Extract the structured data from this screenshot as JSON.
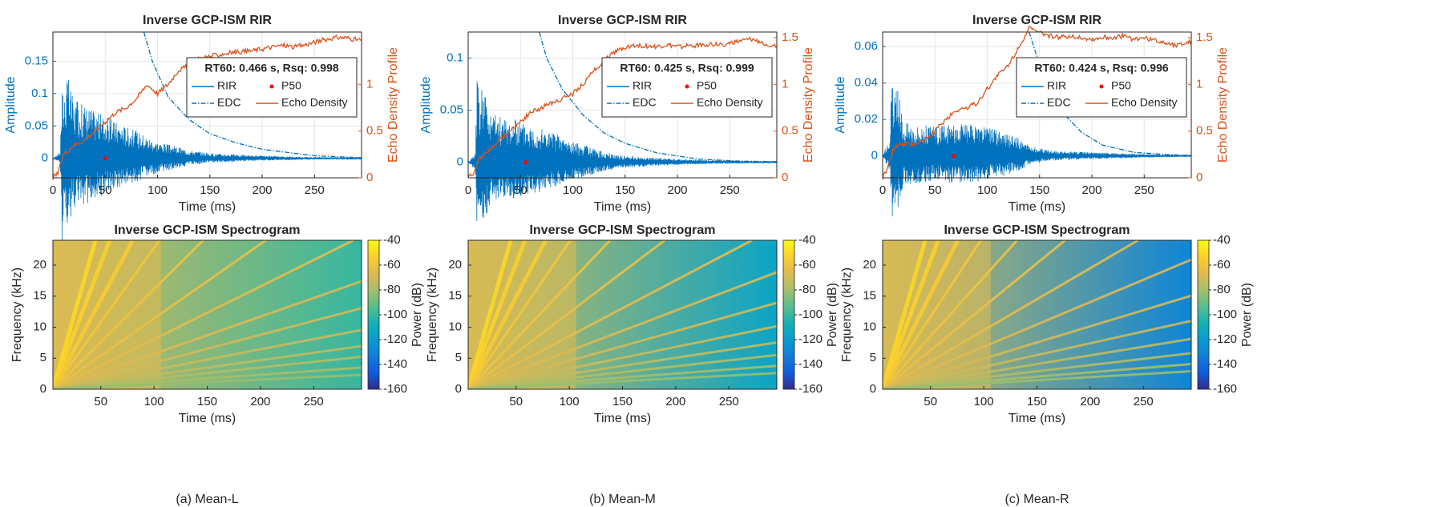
{
  "figure": {
    "captions": [
      "(a) Mean-L",
      "(b) Mean-M",
      "(c) Mean-R"
    ]
  },
  "chart_data": [
    {
      "type": "line",
      "panel": "rir",
      "title": "Inverse GCP-ISM RIR",
      "xlabel": "Time (ms)",
      "ylabel": "Amplitude",
      "ylabel_right": "Echo Density Profile",
      "xlim": [
        0,
        295
      ],
      "ylim": [
        -0.03,
        0.195
      ],
      "ylim_right": [
        0,
        1.56
      ],
      "xticks": [
        0,
        50,
        100,
        150,
        200,
        250
      ],
      "yticks": [
        0,
        0.05,
        0.1,
        0.15
      ],
      "yticks_right": [
        0,
        0.5,
        1
      ],
      "grid": true,
      "annotation": "RT60: 0.466 s, Rsq: 0.998",
      "legend": {
        "position": "upper-right",
        "entries": [
          "RIR",
          "P50",
          "EDC",
          "Echo Density"
        ]
      },
      "colors": {
        "rir": "#0072BD",
        "edc": "#0072BD",
        "p50": "#FF0000",
        "echo": "#D95319"
      },
      "rir_envelope": {
        "x": [
          0,
          7,
          9,
          10,
          14,
          20,
          30,
          50,
          80,
          100,
          130,
          150,
          200,
          250,
          295
        ],
        "y": [
          0,
          0.01,
          0.17,
          0.09,
          0.13,
          0.09,
          0.085,
          0.065,
          0.043,
          0.026,
          0.013,
          0.008,
          0.004,
          0.002,
          0.001
        ]
      },
      "p50": {
        "x": 50,
        "y": 0
      },
      "edc": {
        "x": [
          87,
          95,
          110,
          130,
          150,
          175,
          200,
          250,
          295
        ],
        "y": [
          0.195,
          0.15,
          0.095,
          0.06,
          0.038,
          0.024,
          0.014,
          0.004,
          0.001
        ]
      },
      "echo_density": {
        "x": [
          0,
          5,
          10,
          15,
          20,
          30,
          40,
          50,
          60,
          70,
          80,
          90,
          100,
          110,
          120,
          130,
          140,
          150,
          160,
          170,
          180,
          190,
          200,
          210,
          220,
          230,
          240,
          250,
          260,
          270,
          280,
          290,
          295
        ],
        "y": [
          0,
          0.05,
          0.25,
          0.3,
          0.35,
          0.4,
          0.5,
          0.6,
          0.7,
          0.75,
          0.85,
          1.0,
          0.9,
          1.0,
          1.15,
          1.2,
          1.28,
          1.3,
          1.32,
          1.34,
          1.35,
          1.36,
          1.38,
          1.4,
          1.42,
          1.4,
          1.42,
          1.45,
          1.48,
          1.5,
          1.5,
          1.48,
          1.47
        ]
      }
    },
    {
      "type": "line",
      "panel": "rir",
      "title": "Inverse GCP-ISM RIR",
      "xlabel": "Time (ms)",
      "ylabel": "Amplitude",
      "ylabel_right": "Echo Density Profile",
      "xlim": [
        0,
        295
      ],
      "ylim": [
        -0.015,
        0.125
      ],
      "ylim_right": [
        0,
        1.56
      ],
      "xticks": [
        0,
        50,
        100,
        150,
        200,
        250
      ],
      "yticks": [
        0,
        0.05,
        0.1
      ],
      "yticks_right": [
        0,
        0.5,
        1,
        1.5
      ],
      "grid": true,
      "annotation": "RT60: 0.425 s, Rsq: 0.999",
      "legend": {
        "position": "upper-right",
        "entries": [
          "RIR",
          "P50",
          "EDC",
          "Echo Density"
        ]
      },
      "colors": {
        "rir": "#0072BD",
        "edc": "#0072BD",
        "p50": "#FF0000",
        "echo": "#D95319"
      },
      "rir_envelope": {
        "x": [
          0,
          7,
          9,
          10,
          14,
          20,
          30,
          50,
          80,
          100,
          130,
          150,
          200,
          250,
          295
        ],
        "y": [
          0,
          0.01,
          0.115,
          0.06,
          0.085,
          0.05,
          0.045,
          0.04,
          0.03,
          0.02,
          0.01,
          0.006,
          0.003,
          0.0015,
          0.001
        ]
      },
      "p50": {
        "x": 55,
        "y": 0
      },
      "edc": {
        "x": [
          68,
          75,
          90,
          110,
          130,
          150,
          180,
          220,
          260,
          295
        ],
        "y": [
          0.125,
          0.1,
          0.07,
          0.045,
          0.028,
          0.018,
          0.009,
          0.003,
          0.001,
          0.0005
        ]
      },
      "echo_density": {
        "x": [
          0,
          5,
          10,
          15,
          20,
          30,
          40,
          50,
          60,
          70,
          80,
          90,
          100,
          110,
          120,
          130,
          140,
          150,
          160,
          170,
          180,
          190,
          200,
          210,
          220,
          230,
          240,
          250,
          260,
          270,
          280,
          290,
          295
        ],
        "y": [
          0,
          0.05,
          0.2,
          0.25,
          0.3,
          0.4,
          0.5,
          0.6,
          0.7,
          0.75,
          0.8,
          0.85,
          0.9,
          1.0,
          1.15,
          1.25,
          1.35,
          1.4,
          1.42,
          1.41,
          1.4,
          1.42,
          1.4,
          1.41,
          1.42,
          1.43,
          1.42,
          1.44,
          1.46,
          1.48,
          1.45,
          1.42,
          1.4
        ]
      }
    },
    {
      "type": "line",
      "panel": "rir",
      "title": "Inverse GCP-ISM RIR",
      "xlabel": "Time (ms)",
      "ylabel": "Amplitude",
      "ylabel_right": "Echo Density Profile",
      "xlim": [
        0,
        295
      ],
      "ylim": [
        -0.012,
        0.068
      ],
      "ylim_right": [
        0,
        1.56
      ],
      "xticks": [
        0,
        50,
        100,
        150,
        200,
        250
      ],
      "yticks": [
        0,
        0.02,
        0.04,
        0.06
      ],
      "yticks_right": [
        0,
        0.5,
        1,
        1.5
      ],
      "grid": true,
      "annotation": "RT60: 0.424 s, Rsq: 0.996",
      "legend": {
        "position": "upper-right",
        "entries": [
          "RIR",
          "P50",
          "EDC",
          "Echo Density"
        ]
      },
      "colors": {
        "rir": "#0072BD",
        "edc": "#0072BD",
        "p50": "#FF0000",
        "echo": "#D95319"
      },
      "rir_envelope": {
        "x": [
          0,
          7,
          9,
          10,
          14,
          20,
          30,
          50,
          70,
          100,
          130,
          140,
          160,
          200,
          250,
          295
        ],
        "y": [
          0,
          0.01,
          0.052,
          0.03,
          0.04,
          0.02,
          0.018,
          0.016,
          0.018,
          0.016,
          0.01,
          0.006,
          0.003,
          0.002,
          0.001,
          0.0005
        ]
      },
      "p50": {
        "x": 68,
        "y": 0
      },
      "edc": {
        "x": [
          140,
          150,
          160,
          175,
          190,
          210,
          240,
          270,
          295
        ],
        "y": [
          0.068,
          0.05,
          0.035,
          0.022,
          0.013,
          0.006,
          0.002,
          0.0008,
          0.0003
        ]
      },
      "echo_density": {
        "x": [
          0,
          5,
          10,
          15,
          20,
          30,
          40,
          50,
          60,
          70,
          80,
          90,
          100,
          110,
          120,
          130,
          140,
          150,
          160,
          170,
          180,
          190,
          200,
          210,
          220,
          230,
          240,
          250,
          260,
          270,
          280,
          290,
          295
        ],
        "y": [
          0,
          0.1,
          0.3,
          0.35,
          0.35,
          0.36,
          0.4,
          0.5,
          0.62,
          0.72,
          0.75,
          0.8,
          0.95,
          1.1,
          1.2,
          1.4,
          1.6,
          1.55,
          1.52,
          1.5,
          1.52,
          1.5,
          1.48,
          1.5,
          1.5,
          1.52,
          1.48,
          1.5,
          1.47,
          1.45,
          1.42,
          1.45,
          1.45
        ]
      }
    },
    {
      "type": "heatmap",
      "panel": "spectrogram",
      "title": "Inverse GCP-ISM Spectrogram",
      "xlabel": "Time (ms)",
      "ylabel": "Frequency (kHz)",
      "colorbar_label": "Power (dB)",
      "xlim": [
        5,
        295
      ],
      "ylim": [
        0,
        24
      ],
      "clim": [
        -160,
        -40
      ],
      "xticks": [
        50,
        100,
        150,
        200,
        250
      ],
      "yticks": [
        0,
        5,
        10,
        15,
        20
      ],
      "colorbar_ticks": [
        -40,
        -60,
        -80,
        -100,
        -120,
        -140,
        -160
      ],
      "colormap": "parula",
      "sweep_slopes": [
        0.6,
        0.45,
        0.32,
        0.24,
        0.17,
        0.12,
        0.085,
        0.06,
        0.045,
        0.033,
        0.024,
        0.018,
        0.012,
        0.008
      ],
      "background_db": [
        -70,
        -100
      ]
    },
    {
      "type": "heatmap",
      "panel": "spectrogram",
      "title": "Inverse GCP-ISM Spectrogram",
      "xlabel": "Time (ms)",
      "ylabel": "Frequency (kHz)",
      "colorbar_label": "Power (dB)",
      "xlim": [
        5,
        295
      ],
      "ylim": [
        0,
        24
      ],
      "clim": [
        -160,
        -40
      ],
      "xticks": [
        50,
        100,
        150,
        200,
        250
      ],
      "yticks": [
        0,
        5,
        10,
        15,
        20
      ],
      "colorbar_ticks": [
        -40,
        -60,
        -80,
        -100,
        -120,
        -140,
        -160
      ],
      "colormap": "parula",
      "sweep_slopes": [
        0.6,
        0.45,
        0.33,
        0.25,
        0.18,
        0.13,
        0.09,
        0.065,
        0.048,
        0.035,
        0.026,
        0.019,
        0.013,
        0.009
      ],
      "background_db": [
        -72,
        -115
      ]
    },
    {
      "type": "heatmap",
      "panel": "spectrogram",
      "title": "Inverse GCP-ISM Spectrogram",
      "xlabel": "Time (ms)",
      "ylabel": "Frequency (kHz)",
      "colorbar_label": "Power (dB)",
      "xlim": [
        5,
        295
      ],
      "ylim": [
        0,
        24
      ],
      "clim": [
        -160,
        -40
      ],
      "xticks": [
        50,
        100,
        150,
        200,
        250
      ],
      "yticks": [
        0,
        5,
        10,
        15,
        20
      ],
      "colorbar_ticks": [
        -40,
        -60,
        -80,
        -100,
        -120,
        -140,
        -160
      ],
      "colormap": "parula",
      "sweep_slopes": [
        0.6,
        0.46,
        0.34,
        0.26,
        0.19,
        0.14,
        0.1,
        0.072,
        0.052,
        0.038,
        0.028,
        0.02,
        0.014,
        0.01
      ],
      "background_db": [
        -72,
        -130
      ]
    }
  ]
}
